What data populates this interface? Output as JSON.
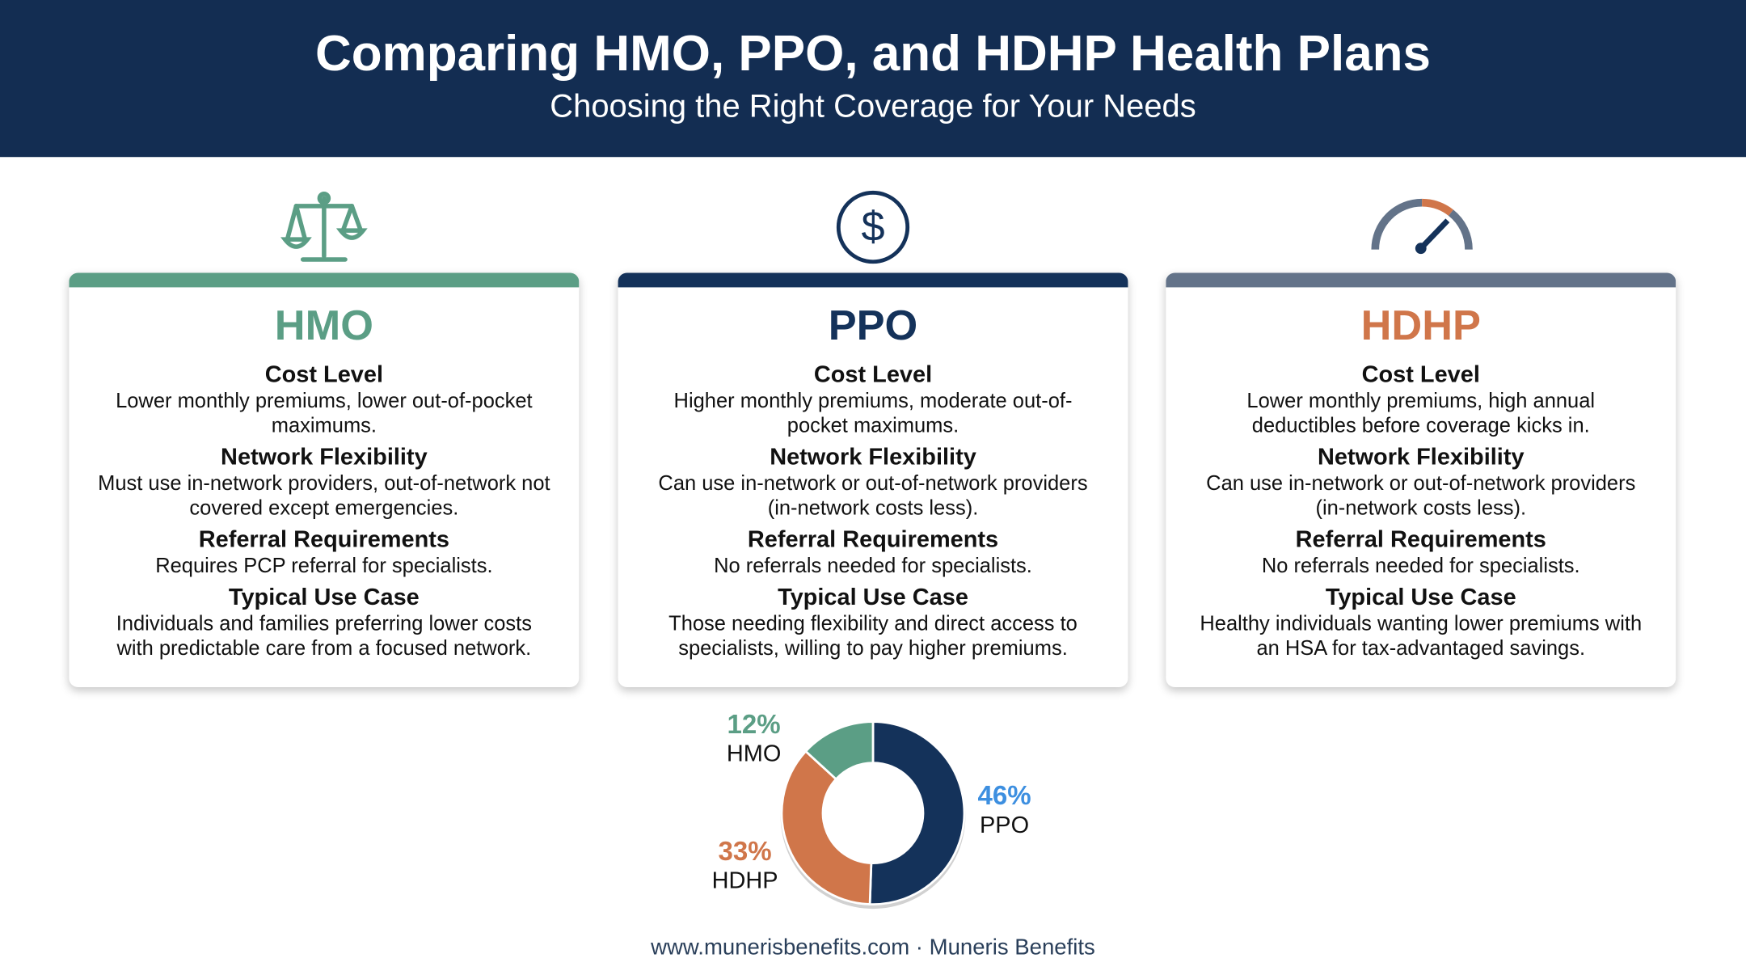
{
  "header": {
    "title": "Comparing HMO, PPO, and HDHP Health Plans",
    "subtitle": "Choosing the Right Coverage for Your Needs"
  },
  "cards": [
    {
      "name": "HMO",
      "color": "#5b9e85",
      "bar_color": "#5b9e85",
      "sections": [
        {
          "heading": "Cost Level",
          "text": "Lower monthly premiums, lower out-of-pocket maximums."
        },
        {
          "heading": "Network Flexibility",
          "text": "Must use in-network providers, out-of-network not covered except emergencies."
        },
        {
          "heading": "Referral Requirements",
          "text": "Requires PCP referral for specialists."
        },
        {
          "heading": "Typical Use Case",
          "text": "Individuals and families preferring lower costs with predictable care from a focused network."
        }
      ]
    },
    {
      "name": "PPO",
      "color": "#14325a",
      "bar_color": "#14325a",
      "sections": [
        {
          "heading": "Cost Level",
          "text": "Higher monthly premiums, moderate out-of-pocket maximums."
        },
        {
          "heading": "Network Flexibility",
          "text": "Can use in-network or out-of-network providers (in-network costs less)."
        },
        {
          "heading": "Referral Requirements",
          "text": "No referrals needed for specialists."
        },
        {
          "heading": "Typical Use Case",
          "text": "Those needing flexibility and direct access to specialists, willing to pay higher premiums."
        }
      ]
    },
    {
      "name": "HDHP",
      "color": "#d0764a",
      "bar_color": "#637389",
      "sections": [
        {
          "heading": "Cost Level",
          "text": "Lower monthly premiums, high annual deductibles before coverage kicks in."
        },
        {
          "heading": "Network Flexibility",
          "text": "Can use in-network or out-of-network providers (in-network costs less)."
        },
        {
          "heading": "Referral Requirements",
          "text": "No referrals needed for specialists."
        },
        {
          "heading": "Typical Use Case",
          "text": "Healthy individuals wanting lower premiums with an HSA for tax-advantaged savings."
        }
      ]
    }
  ],
  "chart_data": {
    "type": "pie",
    "categories": [
      "PPO",
      "HDHP",
      "HMO"
    ],
    "values": [
      46,
      33,
      12
    ],
    "value_labels": [
      "46%",
      "33%",
      "12%"
    ],
    "colors": [
      "#14325a",
      "#d0764a",
      "#5b9e85"
    ],
    "label_colors": [
      "#3d8fe0",
      "#d0764a",
      "#5b9e85"
    ]
  },
  "footer": "www.munerisbenefits.com · Muneris Benefits"
}
